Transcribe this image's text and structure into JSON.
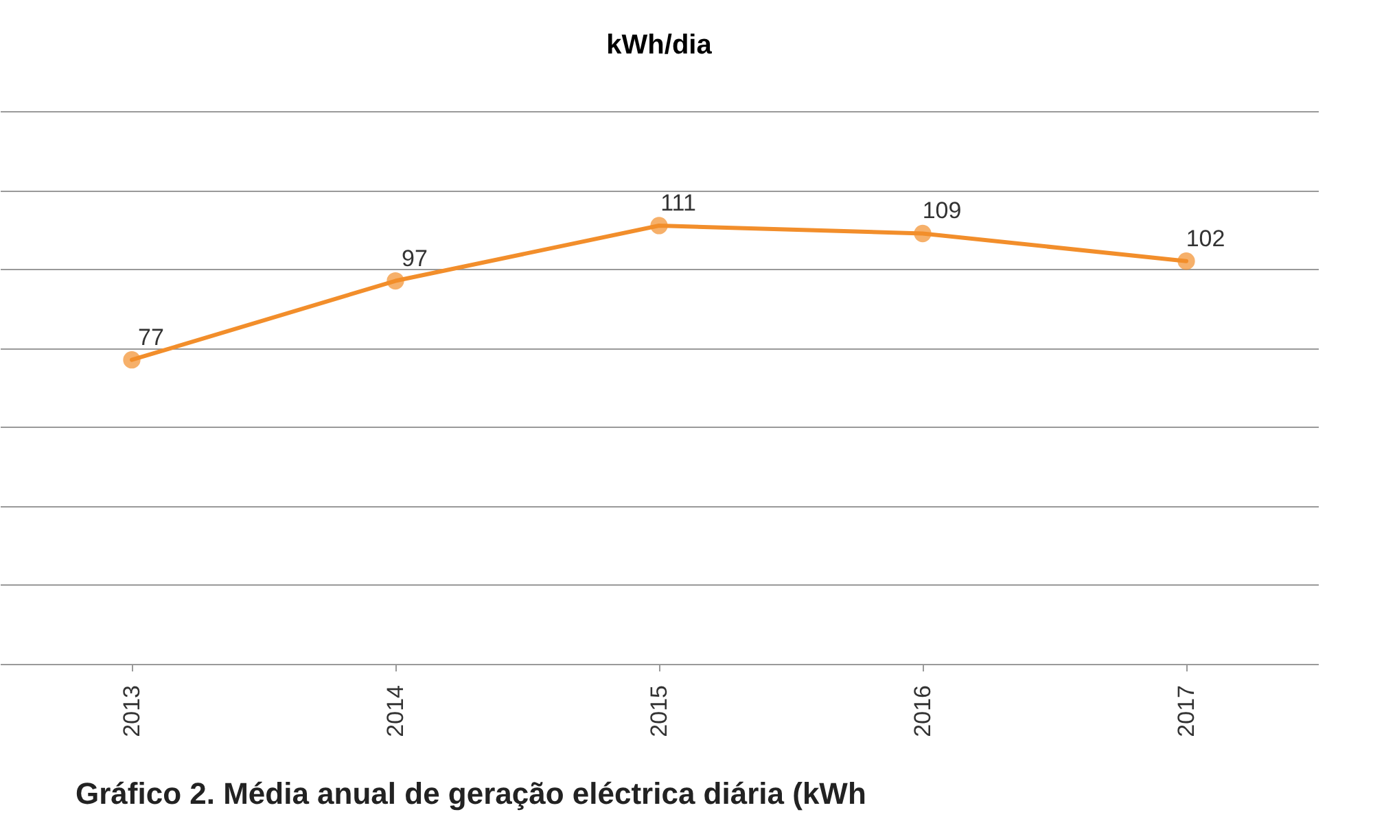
{
  "chart_data": {
    "type": "line",
    "title": "kWh/dia",
    "categories": [
      "2013",
      "2014",
      "2015",
      "2016",
      "2017"
    ],
    "series": [
      {
        "color": "#f28e2b",
        "values": [
          77,
          97,
          111,
          109,
          102
        ]
      }
    ],
    "ylim": [
      0,
      140
    ],
    "yticks": [
      0,
      20,
      40,
      60,
      80,
      100,
      120,
      140
    ],
    "grid": "y",
    "tick_labels": "x",
    "marker": "circle",
    "data_labels": true,
    "annotations": [
      "Gráfico 2. Média anual de geração eléctrica diária (kWh"
    ]
  }
}
